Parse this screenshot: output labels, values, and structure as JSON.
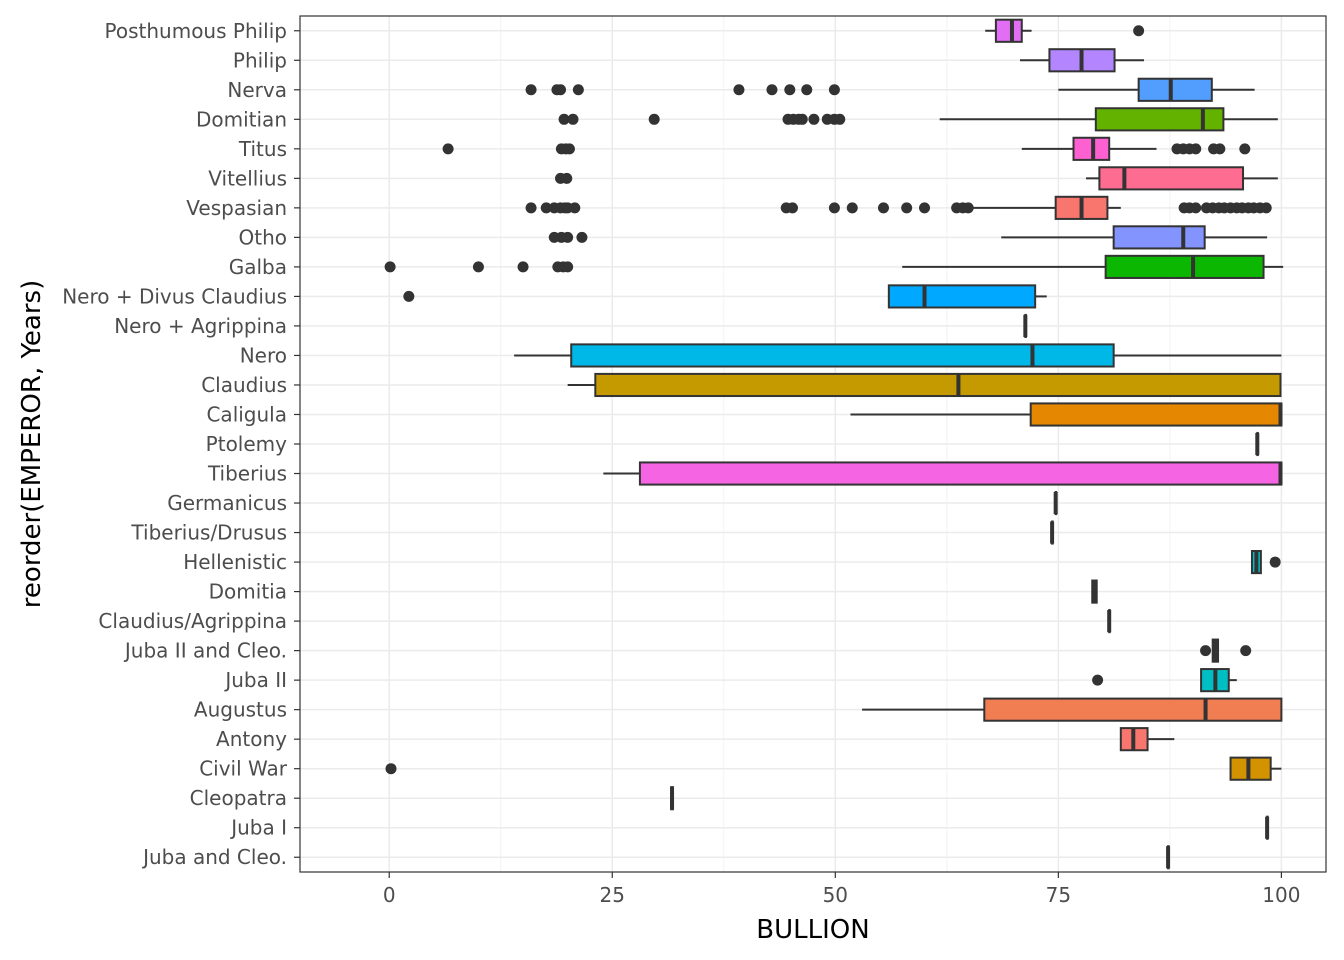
{
  "chart_data": {
    "type": "boxplot",
    "orientation": "horizontal",
    "xlabel": "BULLION",
    "ylabel": "reorder(EMPEROR, Years)",
    "xlim": [
      -10,
      105
    ],
    "x_ticks": [
      0,
      25,
      50,
      75,
      100
    ],
    "grid": true,
    "legend": "none",
    "series": [
      {
        "category": "Posthumous Philip",
        "color": "#E36EF6",
        "min": 66.8,
        "q1": 68.0,
        "median": 69.8,
        "q3": 70.9,
        "max": 72.0,
        "outliers": [
          84.0
        ]
      },
      {
        "category": "Philip",
        "color": "#B385FF",
        "min": 70.7,
        "q1": 74.0,
        "median": 77.6,
        "q3": 81.3,
        "max": 84.6,
        "outliers": []
      },
      {
        "category": "Nerva",
        "color": "#529EFF",
        "min": 75.0,
        "q1": 84.0,
        "median": 87.6,
        "q3": 92.2,
        "max": 97.0,
        "outliers": [
          15.9,
          18.8,
          19.2,
          21.2,
          39.2,
          42.9,
          44.9,
          46.8,
          49.9
        ]
      },
      {
        "category": "Domitian",
        "color": "#64B200",
        "min": 61.7,
        "q1": 79.2,
        "median": 91.2,
        "q3": 93.5,
        "max": 99.6,
        "outliers": [
          19.6,
          20.6,
          29.7,
          44.7,
          45.3,
          45.9,
          46.3,
          47.6,
          49.1,
          49.9,
          50.5
        ]
      },
      {
        "category": "Titus",
        "color": "#FD61D1",
        "min": 70.9,
        "q1": 76.7,
        "median": 78.9,
        "q3": 80.7,
        "max": 86.0,
        "outliers": [
          6.6,
          19.3,
          19.8,
          20.2,
          88.3,
          89.0,
          89.7,
          90.4,
          92.4,
          93.1,
          95.9
        ]
      },
      {
        "category": "Vitellius",
        "color": "#FF6C91",
        "min": 78.1,
        "q1": 79.6,
        "median": 82.4,
        "q3": 95.7,
        "max": 99.6,
        "outliers": [
          19.2,
          19.9
        ]
      },
      {
        "category": "Vespasian",
        "color": "#F8766D",
        "min": 64.9,
        "q1": 74.7,
        "median": 77.6,
        "q3": 80.5,
        "max": 82.0,
        "outliers": [
          15.9,
          17.6,
          18.5,
          19.2,
          19.7,
          20.0,
          20.8,
          44.5,
          45.2,
          49.9,
          51.9,
          55.4,
          58.0,
          60.0,
          63.6,
          64.3,
          64.9,
          89.1,
          89.7,
          90.4,
          91.6,
          92.3,
          93.0,
          93.6,
          94.3,
          95.0,
          95.6,
          96.3,
          96.9,
          97.6,
          98.3
        ]
      },
      {
        "category": "Otho",
        "color": "#8494FF",
        "min": 68.6,
        "q1": 81.2,
        "median": 89.0,
        "q3": 91.4,
        "max": 98.4,
        "outliers": [
          18.5,
          19.3,
          20.0,
          21.6
        ]
      },
      {
        "category": "Galba",
        "color": "#0CB702",
        "min": 57.5,
        "q1": 80.3,
        "median": 90.1,
        "q3": 98.0,
        "max": 100.2,
        "outliers": [
          0.1,
          10.0,
          15.0,
          18.9,
          19.5,
          20.0
        ]
      },
      {
        "category": "Nero + Divus Claudius",
        "color": "#00A9FF",
        "min": 56.0,
        "q1": 56.0,
        "median": 60.0,
        "q3": 72.4,
        "max": 73.7,
        "outliers": [
          2.2
        ]
      },
      {
        "category": "Nero + Agrippina",
        "color": "#00BFC4",
        "min": 71.3,
        "q1": 71.3,
        "median": 71.3,
        "q3": 71.3,
        "max": 71.3,
        "outliers": []
      },
      {
        "category": "Nero",
        "color": "#00B8E7",
        "min": 14.0,
        "q1": 20.4,
        "median": 72.1,
        "q3": 81.2,
        "max": 100.0,
        "outliers": []
      },
      {
        "category": "Claudius",
        "color": "#C49A00",
        "min": 20.0,
        "q1": 23.1,
        "median": 63.8,
        "q3": 99.9,
        "max": 99.9,
        "outliers": []
      },
      {
        "category": "Caligula",
        "color": "#E58700",
        "min": 51.7,
        "q1": 71.9,
        "median": 99.9,
        "q3": 100.0,
        "max": 100.0,
        "outliers": []
      },
      {
        "category": "Ptolemy",
        "color": "#00BFC4",
        "min": 97.3,
        "q1": 97.3,
        "median": 97.3,
        "q3": 97.3,
        "max": 97.3,
        "outliers": []
      },
      {
        "category": "Tiberius",
        "color": "#F564E3",
        "min": 24.0,
        "q1": 28.1,
        "median": 99.9,
        "q3": 100.0,
        "max": 100.0,
        "outliers": []
      },
      {
        "category": "Germanicus",
        "color": "#00BFC4",
        "min": 74.7,
        "q1": 74.7,
        "median": 74.7,
        "q3": 74.7,
        "max": 74.7,
        "outliers": []
      },
      {
        "category": "Tiberius/Drusus",
        "color": "#00BFC4",
        "min": 74.3,
        "q1": 74.3,
        "median": 74.3,
        "q3": 74.3,
        "max": 74.3,
        "outliers": []
      },
      {
        "category": "Hellenistic",
        "color": "#00BFC4",
        "min": 96.7,
        "q1": 96.7,
        "median": 97.2,
        "q3": 97.7,
        "max": 97.7,
        "outliers": [
          99.3
        ]
      },
      {
        "category": "Domitia",
        "color": "#00BFC4",
        "min": 78.8,
        "q1": 78.8,
        "median": 79.0,
        "q3": 79.3,
        "max": 79.3,
        "outliers": []
      },
      {
        "category": "Claudius/Agrippina",
        "color": "#00BFC4",
        "min": 80.7,
        "q1": 80.7,
        "median": 80.7,
        "q3": 80.7,
        "max": 80.7,
        "outliers": []
      },
      {
        "category": "Juba II and Cleo.",
        "color": "#00BFC4",
        "min": 92.3,
        "q1": 92.3,
        "median": 92.6,
        "q3": 92.9,
        "max": 92.9,
        "outliers": [
          91.5,
          96.0
        ]
      },
      {
        "category": "Juba II",
        "color": "#00BFC4",
        "min": 91.0,
        "q1": 91.0,
        "median": 92.6,
        "q3": 94.1,
        "max": 95.0,
        "outliers": [
          79.4
        ]
      },
      {
        "category": "Augustus",
        "color": "#F07E52",
        "min": 53.0,
        "q1": 66.7,
        "median": 91.5,
        "q3": 100.0,
        "max": 100.0,
        "outliers": []
      },
      {
        "category": "Antony",
        "color": "#F8766D",
        "min": 82.0,
        "q1": 82.0,
        "median": 83.4,
        "q3": 85.0,
        "max": 88.0,
        "outliers": []
      },
      {
        "category": "Civil War",
        "color": "#D39200",
        "min": 94.3,
        "q1": 94.3,
        "median": 96.3,
        "q3": 98.8,
        "max": 100.0,
        "outliers": [
          0.2
        ]
      },
      {
        "category": "Cleopatra",
        "color": "#00BFC4",
        "min": 31.6,
        "q1": 31.6,
        "median": 31.7,
        "q3": 31.8,
        "max": 31.8,
        "outliers": []
      },
      {
        "category": "Juba I",
        "color": "#00BFC4",
        "min": 98.4,
        "q1": 98.4,
        "median": 98.4,
        "q3": 98.4,
        "max": 98.4,
        "outliers": []
      },
      {
        "category": "Juba and Cleo.",
        "color": "#00BFC4",
        "min": 87.3,
        "q1": 87.3,
        "median": 87.3,
        "q3": 87.3,
        "max": 87.3,
        "outliers": []
      }
    ]
  }
}
